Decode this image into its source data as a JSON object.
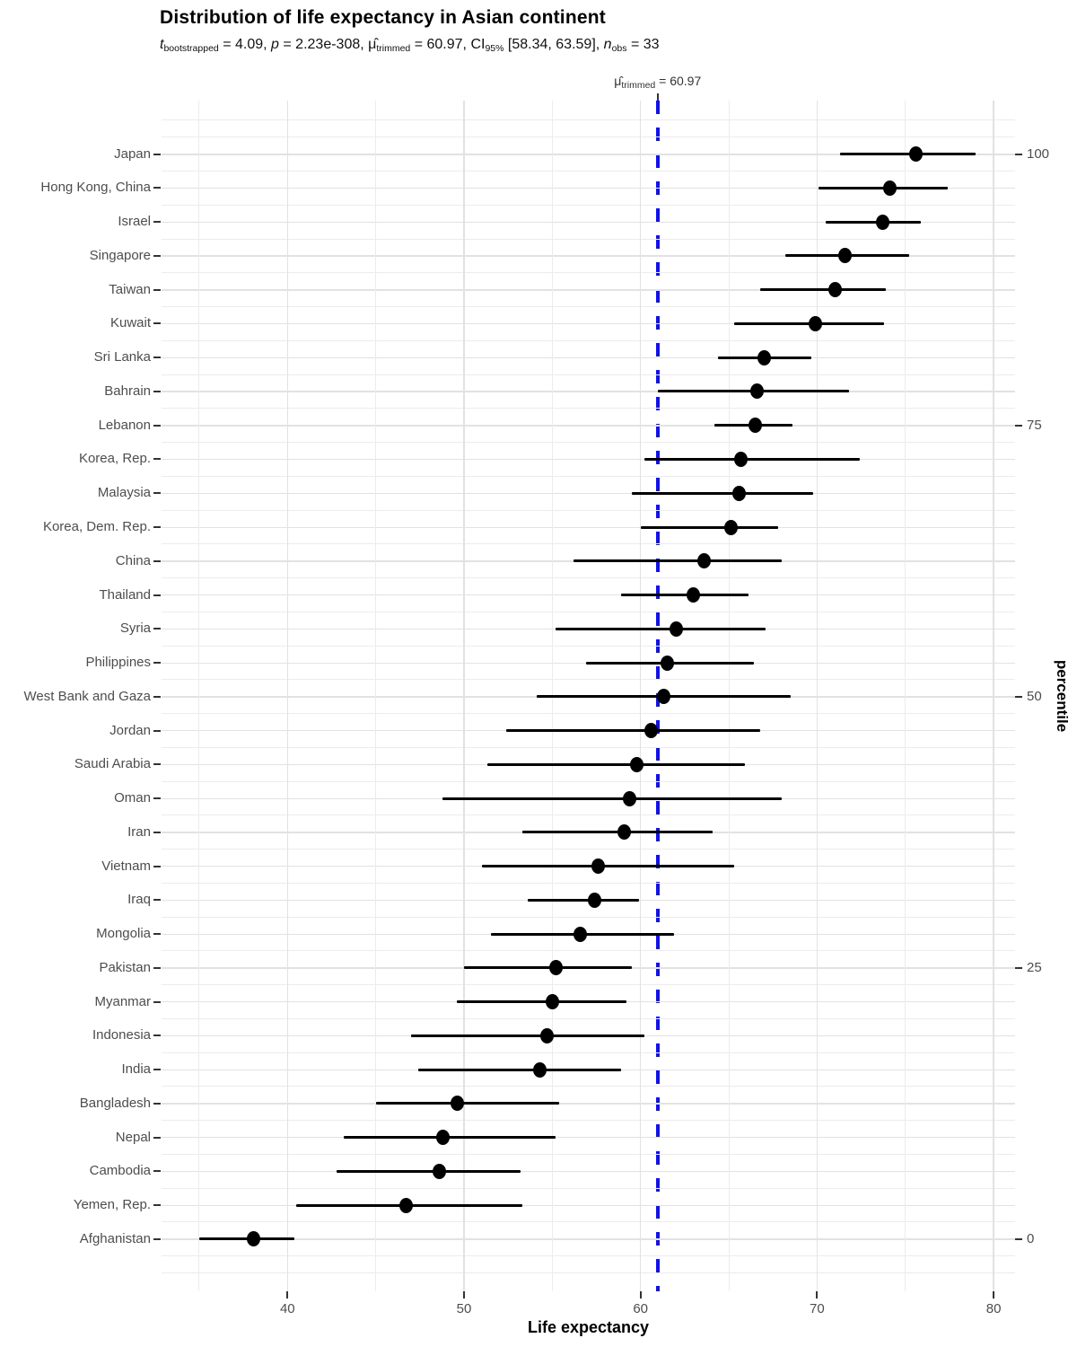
{
  "title": "Distribution of life expectancy in Asian continent",
  "subtitle": {
    "t": "t",
    "t_sub": "bootstrapped",
    "seg1": " = 4.09, ",
    "p": "p",
    "seg2": " = 2.23e-308, ",
    "mu": "μ̂",
    "mu_sub": "trimmed",
    "seg3": " = 60.97, ",
    "ci": "CI",
    "ci_sub": "95%",
    "seg4": " [58.34, 63.59], ",
    "n": "n",
    "n_sub": "obs",
    "seg5": " = 33"
  },
  "mu_line": {
    "mu": "μ̂",
    "sub": "trimmed",
    "rest": " = 60.97",
    "value": 60.97,
    "color": "#1111ee"
  },
  "chart_data": {
    "type": "scatter",
    "title": "Distribution of life expectancy in Asian continent",
    "xlabel": "Life expectancy",
    "y2label": "percentile",
    "xlim": [
      32.8,
      81.2
    ],
    "x_major_ticks": [
      40,
      50,
      60,
      70,
      80
    ],
    "x_minor_ticks": [
      35,
      45,
      55,
      65,
      75
    ],
    "percentile_ticks": [
      100,
      75,
      50,
      25,
      0
    ],
    "point_color": "#000000",
    "grid": true,
    "legend_position": "none",
    "series": [
      {
        "country": "Japan",
        "value": 75.6,
        "lo": 71.3,
        "hi": 79.0,
        "pct": 100
      },
      {
        "country": "Hong Kong, China",
        "value": 74.1,
        "lo": 70.1,
        "hi": 77.4,
        "pct": 96.875
      },
      {
        "country": "Israel",
        "value": 73.7,
        "lo": 70.5,
        "hi": 75.9,
        "pct": 93.75
      },
      {
        "country": "Singapore",
        "value": 71.6,
        "lo": 68.2,
        "hi": 75.2,
        "pct": 90.625
      },
      {
        "country": "Taiwan",
        "value": 71.0,
        "lo": 66.8,
        "hi": 73.9,
        "pct": 87.5
      },
      {
        "country": "Kuwait",
        "value": 69.9,
        "lo": 65.3,
        "hi": 73.8,
        "pct": 84.375
      },
      {
        "country": "Sri Lanka",
        "value": 67.0,
        "lo": 64.4,
        "hi": 69.7,
        "pct": 81.25
      },
      {
        "country": "Bahrain",
        "value": 66.6,
        "lo": 61.0,
        "hi": 71.8,
        "pct": 78.125
      },
      {
        "country": "Lebanon",
        "value": 66.5,
        "lo": 64.2,
        "hi": 68.6,
        "pct": 75
      },
      {
        "country": "Korea, Rep.",
        "value": 65.7,
        "lo": 60.2,
        "hi": 72.4,
        "pct": 71.875
      },
      {
        "country": "Malaysia",
        "value": 65.6,
        "lo": 59.5,
        "hi": 69.8,
        "pct": 68.75
      },
      {
        "country": "Korea, Dem. Rep.",
        "value": 65.1,
        "lo": 60.0,
        "hi": 67.8,
        "pct": 65.625
      },
      {
        "country": "China",
        "value": 63.6,
        "lo": 56.2,
        "hi": 68.0,
        "pct": 62.5
      },
      {
        "country": "Thailand",
        "value": 63.0,
        "lo": 58.9,
        "hi": 66.1,
        "pct": 59.375
      },
      {
        "country": "Syria",
        "value": 62.0,
        "lo": 55.2,
        "hi": 67.1,
        "pct": 56.25
      },
      {
        "country": "Philippines",
        "value": 61.5,
        "lo": 56.9,
        "hi": 66.4,
        "pct": 53.125
      },
      {
        "country": "West Bank and Gaza",
        "value": 61.3,
        "lo": 54.1,
        "hi": 68.5,
        "pct": 50
      },
      {
        "country": "Jordan",
        "value": 60.6,
        "lo": 52.4,
        "hi": 66.8,
        "pct": 46.875
      },
      {
        "country": "Saudi Arabia",
        "value": 59.8,
        "lo": 51.3,
        "hi": 65.9,
        "pct": 43.75
      },
      {
        "country": "Oman",
        "value": 59.4,
        "lo": 48.8,
        "hi": 68.0,
        "pct": 40.625
      },
      {
        "country": "Iran",
        "value": 59.1,
        "lo": 53.3,
        "hi": 64.1,
        "pct": 37.5
      },
      {
        "country": "Vietnam",
        "value": 57.6,
        "lo": 51.0,
        "hi": 65.3,
        "pct": 34.375
      },
      {
        "country": "Iraq",
        "value": 57.4,
        "lo": 53.6,
        "hi": 59.9,
        "pct": 31.25
      },
      {
        "country": "Mongolia",
        "value": 56.6,
        "lo": 51.5,
        "hi": 61.9,
        "pct": 28.125
      },
      {
        "country": "Pakistan",
        "value": 55.2,
        "lo": 50.0,
        "hi": 59.5,
        "pct": 25
      },
      {
        "country": "Myanmar",
        "value": 55.0,
        "lo": 49.6,
        "hi": 59.2,
        "pct": 21.875
      },
      {
        "country": "Indonesia",
        "value": 54.7,
        "lo": 47.0,
        "hi": 60.2,
        "pct": 18.75
      },
      {
        "country": "India",
        "value": 54.3,
        "lo": 47.4,
        "hi": 58.9,
        "pct": 15.625
      },
      {
        "country": "Bangladesh",
        "value": 49.6,
        "lo": 45.0,
        "hi": 55.4,
        "pct": 12.5
      },
      {
        "country": "Nepal",
        "value": 48.8,
        "lo": 43.2,
        "hi": 55.2,
        "pct": 9.375
      },
      {
        "country": "Cambodia",
        "value": 48.6,
        "lo": 42.8,
        "hi": 53.2,
        "pct": 6.25
      },
      {
        "country": "Yemen, Rep.",
        "value": 46.7,
        "lo": 40.5,
        "hi": 53.3,
        "pct": 3.125
      },
      {
        "country": "Afghanistan",
        "value": 38.1,
        "lo": 35.0,
        "hi": 40.4,
        "pct": 0
      }
    ]
  }
}
